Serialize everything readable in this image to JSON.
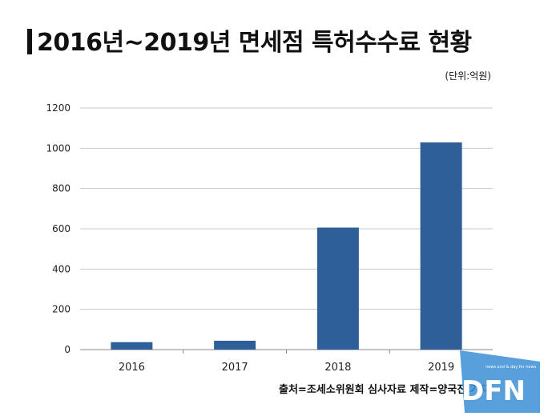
{
  "header": {
    "title": "2016년~2019년 면세점 특허수수료 현황",
    "unit": "(단위:억원)"
  },
  "footer": {
    "source": "출처=조세소위원회 심사자료 제작=양국진 기자"
  },
  "colors": {
    "bar": "#2f5f98",
    "grid": "#c8c8c8",
    "axis": "#888888",
    "logo": "#3a8fd6"
  },
  "logo": {
    "text": "DFN",
    "tagline": "news and & day for news"
  },
  "chart_data": {
    "type": "bar",
    "categories": [
      "2016",
      "2017",
      "2018",
      "2019"
    ],
    "values": [
      37,
      44,
      606,
      1029
    ],
    "ylim": [
      0,
      1200
    ],
    "yticks": [
      0,
      200,
      400,
      600,
      800,
      1000,
      1200
    ],
    "grid": true,
    "legend": "none"
  }
}
